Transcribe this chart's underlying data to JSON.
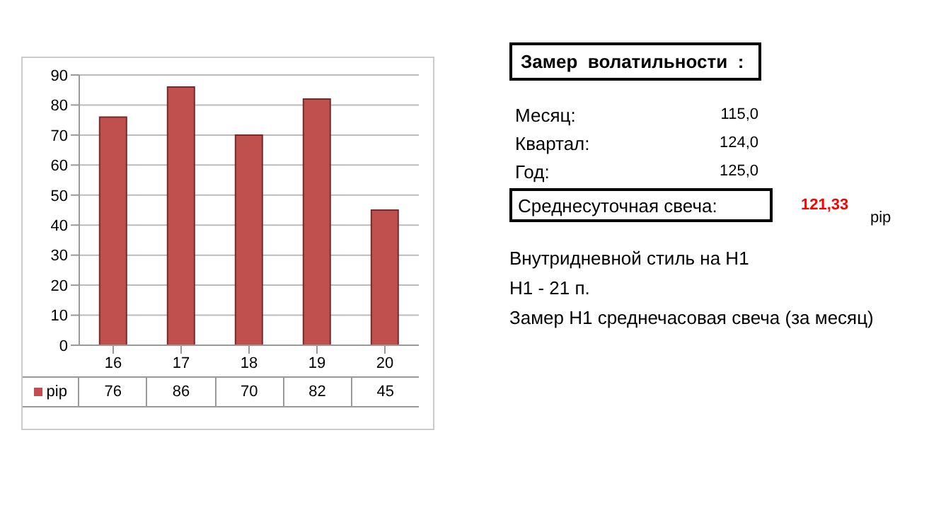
{
  "chart_data": [
    {
      "type": "bar",
      "categories": [
        "16",
        "17",
        "18",
        "19",
        "20"
      ],
      "series": [
        {
          "name": "pip",
          "color": "#c0504d",
          "values": [
            76,
            86,
            70,
            82,
            45
          ]
        }
      ],
      "ylim": [
        0,
        90
      ],
      "yticks": [
        0,
        10,
        20,
        30,
        40,
        50,
        60,
        70,
        80,
        90
      ],
      "grid": "y",
      "legend": "bottom left",
      "data_labels": true
    },
    {
      "type": "other",
      "title": "Замер  волатильности  :",
      "annotations": [
        "Месяц:",
        "115,0",
        "Квартал:",
        "124,0",
        "Год:",
        "125,0",
        "Среднесуточная свеча:",
        "121,33",
        "pip",
        "Внутридневной стиль на H1",
        "H1 - 21 п.",
        "Замер H1 среднечасовая свеча (за месяц)"
      ]
    }
  ]
}
